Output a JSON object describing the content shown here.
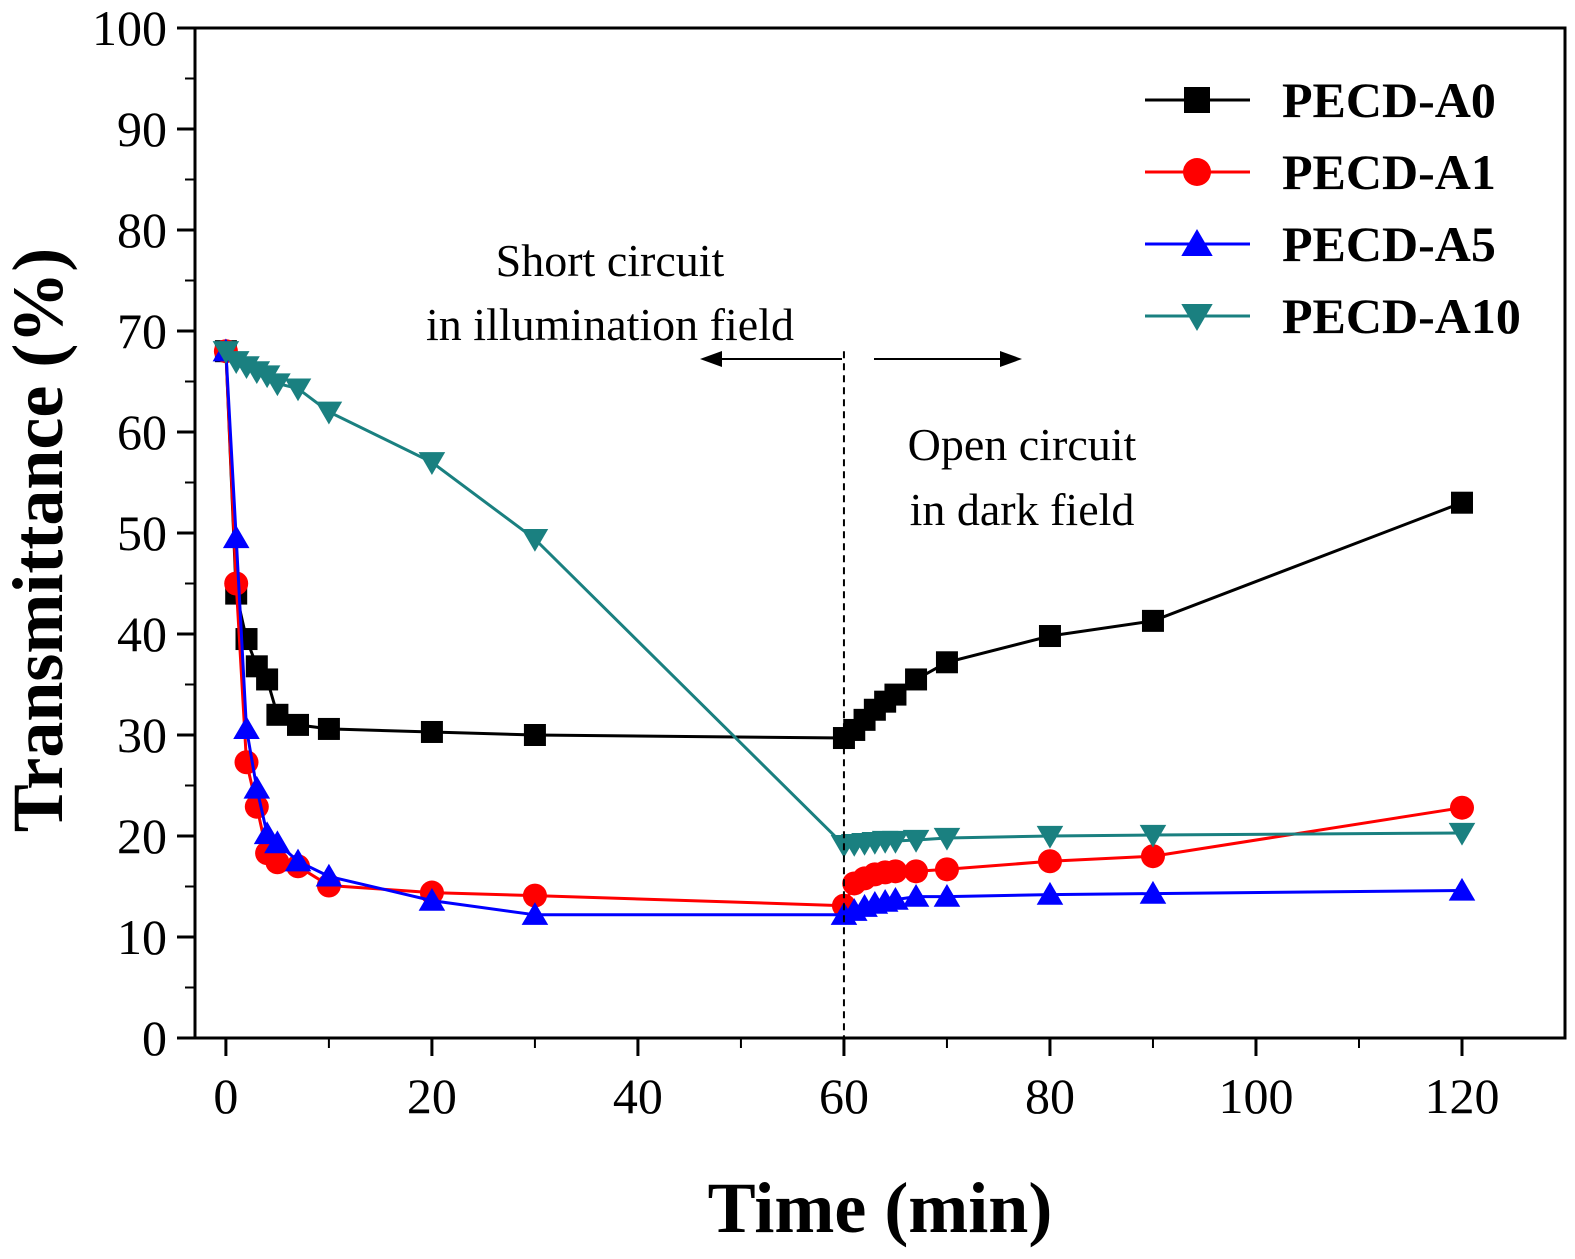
{
  "chart_data": {
    "type": "line",
    "xlabel": "Time (min)",
    "ylabel": "Transmittance (%)",
    "xlim": [
      -3,
      130
    ],
    "ylim": [
      0,
      100
    ],
    "xticks": [
      0,
      20,
      40,
      60,
      80,
      100,
      120
    ],
    "yticks": [
      0,
      10,
      20,
      30,
      40,
      50,
      60,
      70,
      80,
      90,
      100
    ],
    "legend_position": "top-right",
    "annotations": {
      "short_line1": "Short circuit",
      "short_line2": "in illumination field",
      "open_line1": "Open circuit",
      "open_line2": "in dark field"
    },
    "divider_x": 60,
    "series": [
      {
        "name": "PECD-A0",
        "color": "#000000",
        "marker": "square",
        "x": [
          0,
          1,
          2,
          3,
          4,
          5,
          7,
          10,
          20,
          30,
          60,
          61,
          62,
          63,
          64,
          65,
          67,
          70,
          80,
          90,
          120
        ],
        "y": [
          68,
          44,
          39.5,
          36.8,
          35.5,
          32,
          31,
          30.6,
          30.3,
          30,
          29.7,
          30.5,
          31.5,
          32.5,
          33.3,
          34,
          35.5,
          37.2,
          39.8,
          41.3,
          53
        ]
      },
      {
        "name": "PECD-A1",
        "color": "#ff0000",
        "marker": "circle",
        "x": [
          0,
          1,
          2,
          3,
          4,
          5,
          7,
          10,
          20,
          30,
          60,
          61,
          62,
          63,
          64,
          65,
          67,
          70,
          80,
          90,
          120
        ],
        "y": [
          68,
          45,
          27.3,
          22.9,
          18.3,
          17.4,
          17,
          15.1,
          14.4,
          14.1,
          13.1,
          15.3,
          15.8,
          16.2,
          16.4,
          16.5,
          16.5,
          16.7,
          17.5,
          18,
          22.8
        ]
      },
      {
        "name": "PECD-A5",
        "color": "#0000ff",
        "marker": "triangle-up",
        "x": [
          0,
          1,
          2,
          3,
          4,
          5,
          7,
          10,
          20,
          30,
          60,
          61,
          62,
          63,
          64,
          65,
          67,
          70,
          80,
          90,
          120
        ],
        "y": [
          68,
          49.5,
          30.6,
          24.7,
          20.2,
          19.3,
          17.5,
          16,
          13.6,
          12.2,
          12.2,
          12.6,
          13,
          13.3,
          13.5,
          13.7,
          14,
          14,
          14.2,
          14.3,
          14.6
        ]
      },
      {
        "name": "PECD-A10",
        "color": "#1a8080",
        "marker": "triangle-down",
        "x": [
          0,
          1,
          2,
          3,
          4,
          5,
          7,
          10,
          20,
          30,
          60,
          61,
          62,
          63,
          64,
          65,
          67,
          70,
          80,
          90,
          120
        ],
        "y": [
          68,
          67,
          66.5,
          66,
          65.6,
          64.8,
          64.3,
          62,
          57,
          49.4,
          19.1,
          19.2,
          19.3,
          19.4,
          19.5,
          19.5,
          19.6,
          19.8,
          20,
          20.1,
          20.3
        ]
      }
    ]
  }
}
